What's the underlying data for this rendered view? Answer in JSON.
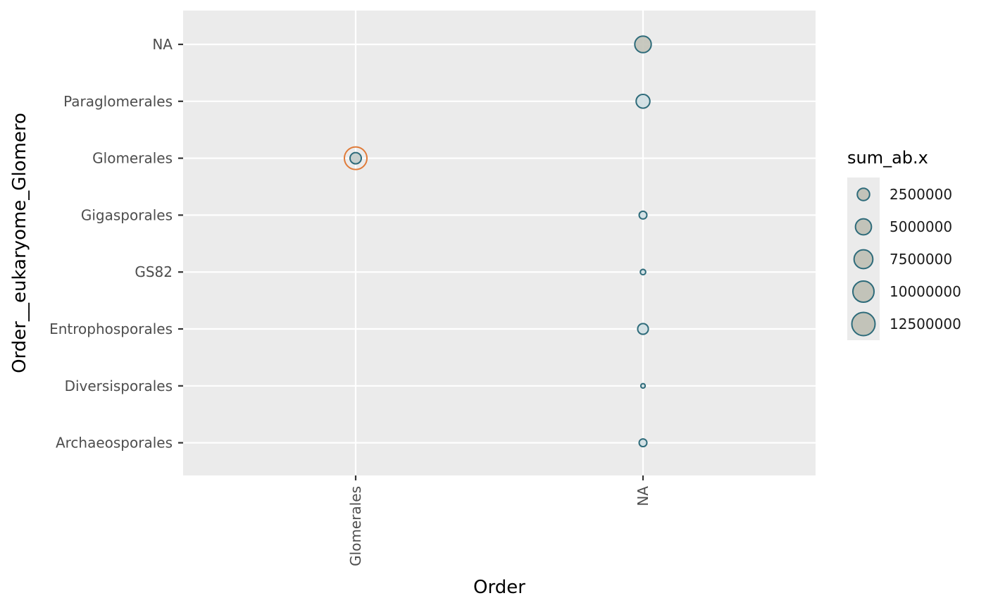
{
  "chart_data": {
    "type": "scatter",
    "xlabel": "Order",
    "ylabel": "Order__eukaryome_Glomero",
    "x_categories": [
      "Glomerales",
      "NA"
    ],
    "y_categories": [
      "Archaeosporales",
      "Diversisporales",
      "Entrophosporales",
      "GS82",
      "Gigasporales",
      "Glomerales",
      "Paraglomerales",
      "NA"
    ],
    "size_variable": "sum_ab.x",
    "grid": true,
    "legend_position": "right",
    "points": [
      {
        "x": "NA",
        "y": "NA",
        "size": 8000000,
        "fill": "#c2c3b9",
        "stroke": "#2e6b7a"
      },
      {
        "x": "NA",
        "y": "Paraglomerales",
        "size": 5500000,
        "fill": "#cfdfe3",
        "stroke": "#2e6b7a"
      },
      {
        "x": "Glomerales",
        "y": "Glomerales",
        "size": 3600000,
        "fill": "#c2ccca",
        "stroke": "#2e6b7a",
        "highlight": "#e07b39"
      },
      {
        "x": "NA",
        "y": "Gigasporales",
        "size": 1600000,
        "fill": "#cfdfe3",
        "stroke": "#2e6b7a"
      },
      {
        "x": "NA",
        "y": "GS82",
        "size": 700000,
        "fill": "#cfdfe3",
        "stroke": "#2e6b7a"
      },
      {
        "x": "NA",
        "y": "Entrophosporales",
        "size": 3200000,
        "fill": "#cfdfe3",
        "stroke": "#2e6b7a"
      },
      {
        "x": "NA",
        "y": "Diversisporales",
        "size": 450000,
        "fill": "#cfdfe3",
        "stroke": "#2e6b7a"
      },
      {
        "x": "NA",
        "y": "Archaeosporales",
        "size": 1600000,
        "fill": "#cfdfe3",
        "stroke": "#2e6b7a"
      }
    ],
    "legend": {
      "title": "sum_ab.x",
      "entries": [
        {
          "label": "2500000",
          "value": 2500000
        },
        {
          "label": "5000000",
          "value": 5000000
        },
        {
          "label": "7500000",
          "value": 7500000
        },
        {
          "label": "10000000",
          "value": 10000000
        },
        {
          "label": "12500000",
          "value": 12500000
        }
      ],
      "fill": "#c2c3b9",
      "stroke": "#2e6b7a"
    },
    "colors": {
      "panel_background": "#ebebeb",
      "grid": "#ffffff",
      "point_stroke": "#2e6b7a",
      "highlight_stroke": "#e07b39"
    }
  }
}
